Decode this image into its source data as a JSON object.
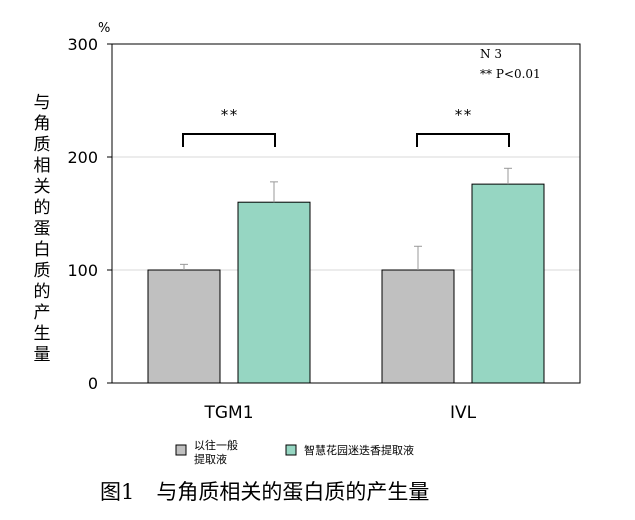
{
  "chart_data": {
    "type": "bar",
    "categories": [
      "TGM1",
      "IVL"
    ],
    "series": [
      {
        "name": "以往一般提取液",
        "values": [
          100,
          100
        ],
        "errors": [
          5,
          21
        ],
        "color": "#c0c0c0"
      },
      {
        "name": "智慧花园迷迭香提取液",
        "values": [
          160,
          176
        ],
        "errors": [
          18,
          14
        ],
        "color": "#96d6c2"
      }
    ],
    "ylabel": "与角质相关的蛋白质的产生量",
    "unit": "%",
    "yticks": [
      0,
      100,
      200,
      300
    ],
    "ylim": [
      0,
      300
    ],
    "grid": true,
    "significance": [
      "**",
      "**"
    ],
    "annotations": [
      "N 3",
      "** P<0.01"
    ],
    "legend_position": "bottom"
  },
  "caption": {
    "figure_number": "图1",
    "title": "与角质相关的蛋白质的产生量"
  }
}
